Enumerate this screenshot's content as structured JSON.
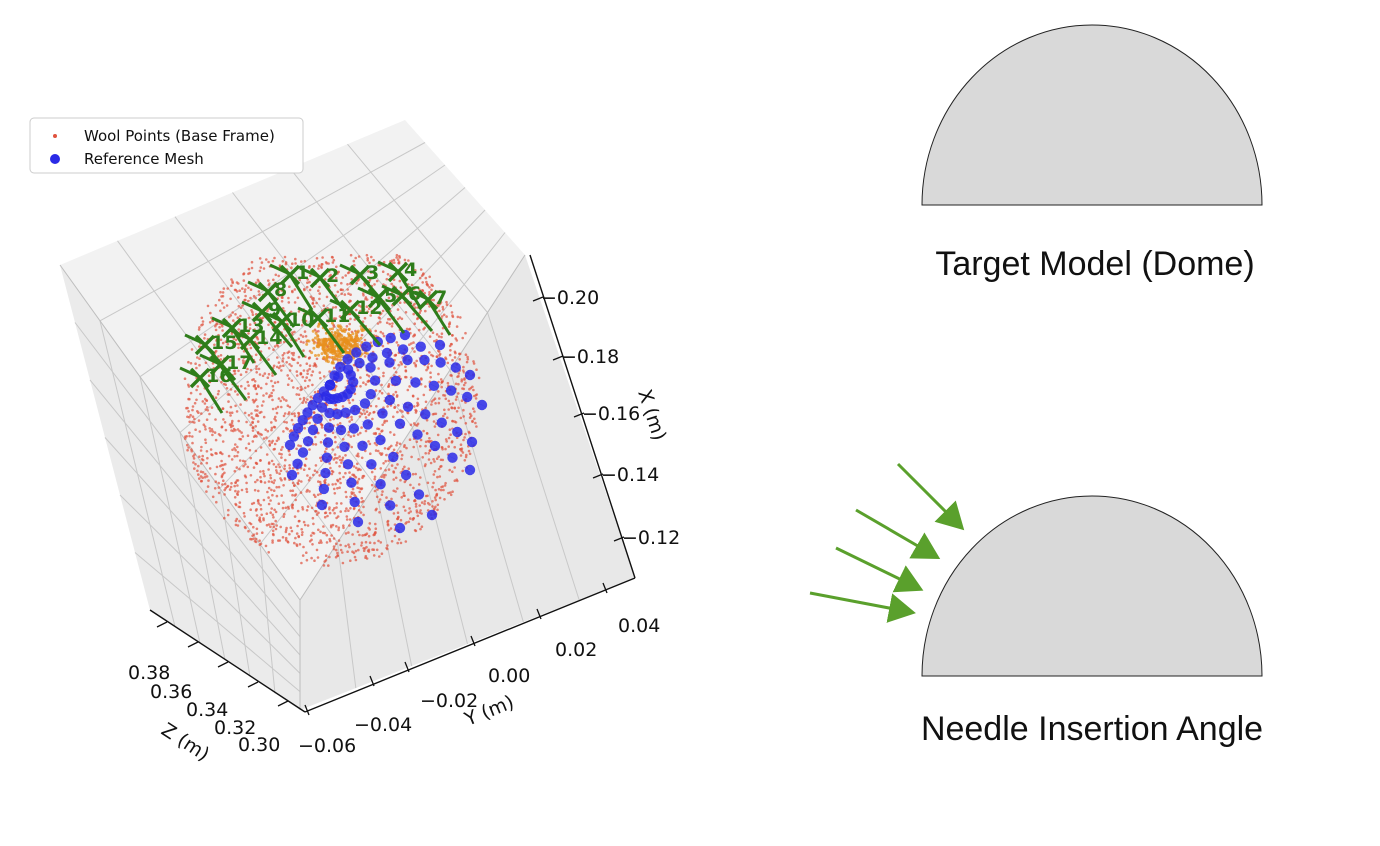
{
  "chart_data": [
    {
      "type": "scatter",
      "projection": "3d",
      "title": "",
      "legend_position": "top-left",
      "legend": [
        {
          "label": "Wool Points (Base Frame)",
          "marker": "small-dot",
          "color": "#e0523e"
        },
        {
          "label": "Reference Mesh",
          "marker": "circle",
          "color": "#2a2ae6"
        }
      ],
      "axes": {
        "x": {
          "label": "X (m)",
          "range": [
            0.11,
            0.21
          ],
          "ticks": [
            "0.20",
            "0.18",
            "0.16",
            "0.14",
            "0.12"
          ]
        },
        "y": {
          "label": "Y (m)",
          "range": [
            -0.06,
            0.04
          ],
          "ticks": [
            "0.04",
            "0.02",
            "0.00",
            "−0.02",
            "−0.04",
            "−0.06"
          ]
        },
        "z": {
          "label": "Z (m)",
          "range": [
            0.3,
            0.38
          ],
          "ticks": [
            "0.38",
            "0.36",
            "0.34",
            "0.32",
            "0.30"
          ]
        }
      },
      "grid": true,
      "series": [
        {
          "name": "Wool Points (Base Frame)",
          "shape": "hemisphere point cloud",
          "color": "#e0523e",
          "count": 3000
        },
        {
          "name": "Reference Mesh",
          "shape": "radial spokes on dome",
          "color": "#2a2ae6",
          "spokes": 12,
          "points_per_spoke": 9
        }
      ],
      "needles": {
        "color": "#2e7d1a",
        "marker": "x",
        "labels": [
          "1",
          "2",
          "3",
          "4",
          "5",
          "6",
          "7",
          "8",
          "9",
          "10",
          "11",
          "12",
          "13",
          "14",
          "15",
          "16",
          "17"
        ]
      }
    }
  ],
  "diagram": {
    "target_caption": "Target Model (Dome)",
    "needle_caption": "Needle Insertion Angle",
    "dome_fill": "#d9d9d9",
    "arrow_color": "#5aa02c"
  }
}
